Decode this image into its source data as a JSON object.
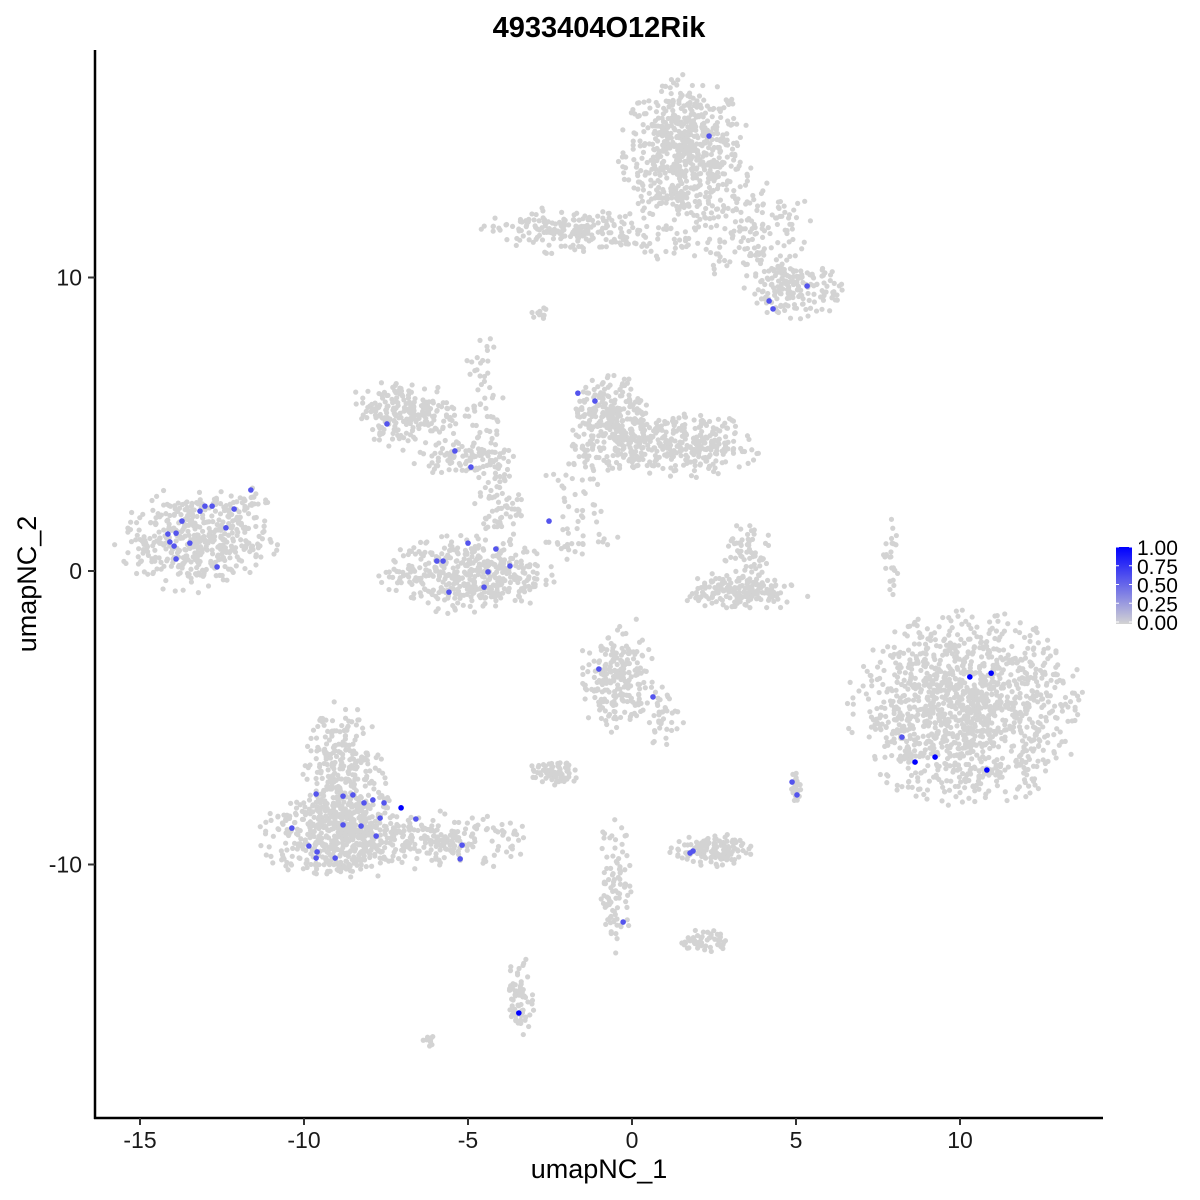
{
  "chart_data": {
    "type": "scatter",
    "title": "4933404O12Rik",
    "xlabel": "umapNC_1",
    "ylabel": "umapNC_2",
    "xlim": [
      -16.4,
      14.4
    ],
    "ylim": [
      -18.6,
      17.8
    ],
    "xticks": [
      -15,
      -10,
      -5,
      0,
      5,
      10
    ],
    "yticks": [
      -10,
      0,
      10
    ],
    "grid": false,
    "color_scale": {
      "low": "#d3d3d3",
      "high": "#0000ff",
      "min": 0,
      "max": 1,
      "legend_labels": [
        "0.00",
        "0.25",
        "0.50",
        "0.75",
        "1.00"
      ],
      "legend_position": "right"
    },
    "background_cells": [
      {
        "cx": 1.6,
        "cy": 14.2,
        "sx": 0.9,
        "sy": 1.2,
        "n": 650
      },
      {
        "cx": 3.6,
        "cy": 11.6,
        "sx": 0.9,
        "sy": 0.9,
        "n": 150
      },
      {
        "cx": -1.9,
        "cy": 11.6,
        "sx": 1.2,
        "sy": 0.35,
        "n": 200
      },
      {
        "cx": 1.0,
        "cy": 11.2,
        "sx": 0.8,
        "sy": 0.3,
        "n": 40
      },
      {
        "cx": 5.0,
        "cy": 9.6,
        "sx": 0.7,
        "sy": 0.45,
        "n": 170
      },
      {
        "cx": -13.3,
        "cy": 1.05,
        "sx": 1.1,
        "sy": 0.8,
        "n": 450
      },
      {
        "cx": -11.7,
        "cy": 2.4,
        "sx": 0.3,
        "sy": 0.2,
        "n": 20
      },
      {
        "cx": -6.8,
        "cy": 5.4,
        "sx": 0.8,
        "sy": 0.55,
        "n": 220
      },
      {
        "cx": -5.3,
        "cy": 3.9,
        "sx": 0.8,
        "sy": 0.3,
        "n": 80
      },
      {
        "cx": -4.5,
        "cy": 5.5,
        "sx": 0.3,
        "sy": 1.3,
        "n": 60
      },
      {
        "cx": -4.1,
        "cy": 2.4,
        "sx": 0.35,
        "sy": 0.8,
        "n": 80
      },
      {
        "cx": -5.0,
        "cy": -0.1,
        "sx": 1.2,
        "sy": 0.6,
        "n": 450
      },
      {
        "cx": -0.6,
        "cy": 5.0,
        "sx": 0.6,
        "sy": 0.8,
        "n": 300
      },
      {
        "cx": 1.6,
        "cy": 4.3,
        "sx": 1.1,
        "sy": 0.5,
        "n": 300
      },
      {
        "cx": -1.6,
        "cy": 2.6,
        "sx": 0.5,
        "sy": 0.8,
        "n": 40
      },
      {
        "cx": -1.7,
        "cy": 0.9,
        "sx": 0.6,
        "sy": 0.3,
        "n": 25
      },
      {
        "cx": 3.3,
        "cy": -0.7,
        "sx": 0.8,
        "sy": 0.3,
        "n": 180
      },
      {
        "cx": 3.5,
        "cy": 0.6,
        "sx": 0.35,
        "sy": 0.6,
        "n": 60
      },
      {
        "cx": 10.2,
        "cy": -4.7,
        "sx": 1.6,
        "sy": 1.5,
        "n": 1300
      },
      {
        "cx": 7.9,
        "cy": 0.4,
        "sx": 0.15,
        "sy": 0.6,
        "n": 25
      },
      {
        "cx": -8.8,
        "cy": -7.3,
        "sx": 0.6,
        "sy": 1.3,
        "n": 350
      },
      {
        "cx": -9.0,
        "cy": -9.0,
        "sx": 1.1,
        "sy": 0.7,
        "n": 450
      },
      {
        "cx": -5.6,
        "cy": -9.2,
        "sx": 1.2,
        "sy": 0.45,
        "n": 200
      },
      {
        "cx": -0.5,
        "cy": -3.7,
        "sx": 0.55,
        "sy": 0.8,
        "n": 220
      },
      {
        "cx": 0.9,
        "cy": -4.9,
        "sx": 0.3,
        "sy": 0.5,
        "n": 40
      },
      {
        "cx": -2.4,
        "cy": -6.9,
        "sx": 0.35,
        "sy": 0.2,
        "n": 70
      },
      {
        "cx": 2.4,
        "cy": -9.5,
        "sx": 0.55,
        "sy": 0.25,
        "n": 130
      },
      {
        "cx": -0.5,
        "cy": -10.6,
        "sx": 0.25,
        "sy": 1.1,
        "n": 90
      },
      {
        "cx": 2.2,
        "cy": -12.6,
        "sx": 0.35,
        "sy": 0.2,
        "n": 50
      },
      {
        "cx": -3.4,
        "cy": -14.5,
        "sx": 0.2,
        "sy": 0.6,
        "n": 70
      },
      {
        "cx": 5.0,
        "cy": -7.4,
        "sx": 0.1,
        "sy": 0.25,
        "n": 25
      },
      {
        "cx": -6.1,
        "cy": -16.0,
        "sx": 0.15,
        "sy": 0.1,
        "n": 10
      },
      {
        "cx": -2.8,
        "cy": 8.8,
        "sx": 0.15,
        "sy": 0.15,
        "n": 10
      }
    ],
    "expressed_cells": [
      {
        "x": 2.35,
        "y": 14.82,
        "v": 0.6
      },
      {
        "x": 5.34,
        "y": 9.71,
        "v": 0.6
      },
      {
        "x": 4.18,
        "y": 9.2,
        "v": 0.6
      },
      {
        "x": 4.3,
        "y": 8.93,
        "v": 0.6
      },
      {
        "x": -1.65,
        "y": 6.06,
        "v": 0.6
      },
      {
        "x": -1.13,
        "y": 5.79,
        "v": 0.6
      },
      {
        "x": -7.47,
        "y": 5.01,
        "v": 0.6
      },
      {
        "x": -5.4,
        "y": 4.09,
        "v": 0.6
      },
      {
        "x": -4.91,
        "y": 3.54,
        "v": 0.6
      },
      {
        "x": -11.62,
        "y": 2.76,
        "v": 0.6
      },
      {
        "x": -12.13,
        "y": 2.11,
        "v": 0.6
      },
      {
        "x": -12.38,
        "y": 1.47,
        "v": 0.6
      },
      {
        "x": -12.8,
        "y": 2.21,
        "v": 0.6
      },
      {
        "x": -13.02,
        "y": 2.21,
        "v": 0.6
      },
      {
        "x": -13.17,
        "y": 2.04,
        "v": 0.6
      },
      {
        "x": -13.72,
        "y": 1.7,
        "v": 0.6
      },
      {
        "x": -13.9,
        "y": 1.29,
        "v": 0.6
      },
      {
        "x": -14.15,
        "y": 1.26,
        "v": 0.6
      },
      {
        "x": -14.09,
        "y": 0.99,
        "v": 0.6
      },
      {
        "x": -13.96,
        "y": 0.85,
        "v": 0.6
      },
      {
        "x": -13.48,
        "y": 0.95,
        "v": 0.6
      },
      {
        "x": -13.9,
        "y": 0.41,
        "v": 0.6
      },
      {
        "x": -12.65,
        "y": 0.14,
        "v": 0.6
      },
      {
        "x": -2.53,
        "y": 1.7,
        "v": 0.6
      },
      {
        "x": -5.0,
        "y": 0.95,
        "v": 0.6
      },
      {
        "x": -4.15,
        "y": 0.75,
        "v": 0.6
      },
      {
        "x": -5.76,
        "y": 0.34,
        "v": 0.6
      },
      {
        "x": -5.95,
        "y": 0.34,
        "v": 0.6
      },
      {
        "x": -3.72,
        "y": 0.17,
        "v": 0.6
      },
      {
        "x": -4.39,
        "y": -0.03,
        "v": 0.6
      },
      {
        "x": -4.51,
        "y": -0.55,
        "v": 0.6
      },
      {
        "x": -5.58,
        "y": -0.72,
        "v": 0.6
      },
      {
        "x": -1.01,
        "y": -3.34,
        "v": 0.6
      },
      {
        "x": 0.64,
        "y": -4.29,
        "v": 0.6
      },
      {
        "x": 10.3,
        "y": -3.61,
        "v": 1.0
      },
      {
        "x": 10.95,
        "y": -3.48,
        "v": 1.0
      },
      {
        "x": 8.23,
        "y": -5.66,
        "v": 0.6
      },
      {
        "x": 8.63,
        "y": -6.51,
        "v": 1.0
      },
      {
        "x": 9.24,
        "y": -6.34,
        "v": 1.0
      },
      {
        "x": 10.82,
        "y": -6.78,
        "v": 1.0
      },
      {
        "x": -7.04,
        "y": -8.07,
        "v": 1.0
      },
      {
        "x": -8.81,
        "y": -7.67,
        "v": 0.6
      },
      {
        "x": -9.63,
        "y": -7.6,
        "v": 0.6
      },
      {
        "x": -8.51,
        "y": -7.63,
        "v": 0.6
      },
      {
        "x": -8.17,
        "y": -7.9,
        "v": 0.6
      },
      {
        "x": -7.9,
        "y": -7.8,
        "v": 0.6
      },
      {
        "x": -7.56,
        "y": -7.9,
        "v": 0.6
      },
      {
        "x": -6.59,
        "y": -8.45,
        "v": 0.6
      },
      {
        "x": -7.68,
        "y": -8.42,
        "v": 0.6
      },
      {
        "x": -10.37,
        "y": -8.76,
        "v": 0.6
      },
      {
        "x": -8.81,
        "y": -8.65,
        "v": 0.6
      },
      {
        "x": -8.26,
        "y": -8.69,
        "v": 0.6
      },
      {
        "x": -7.8,
        "y": -9.03,
        "v": 0.6
      },
      {
        "x": -9.85,
        "y": -9.37,
        "v": 0.6
      },
      {
        "x": -9.6,
        "y": -9.57,
        "v": 0.6
      },
      {
        "x": -9.05,
        "y": -9.78,
        "v": 0.6
      },
      {
        "x": -9.63,
        "y": -9.78,
        "v": 0.6
      },
      {
        "x": -5.18,
        "y": -9.34,
        "v": 0.6
      },
      {
        "x": -5.24,
        "y": -9.81,
        "v": 0.6
      },
      {
        "x": 4.88,
        "y": -7.19,
        "v": 0.6
      },
      {
        "x": 5.03,
        "y": -7.63,
        "v": 0.6
      },
      {
        "x": 1.77,
        "y": -9.61,
        "v": 0.6
      },
      {
        "x": 1.86,
        "y": -9.54,
        "v": 0.6
      },
      {
        "x": -0.27,
        "y": -11.96,
        "v": 0.6
      },
      {
        "x": -3.45,
        "y": -15.06,
        "v": 1.0
      }
    ]
  }
}
